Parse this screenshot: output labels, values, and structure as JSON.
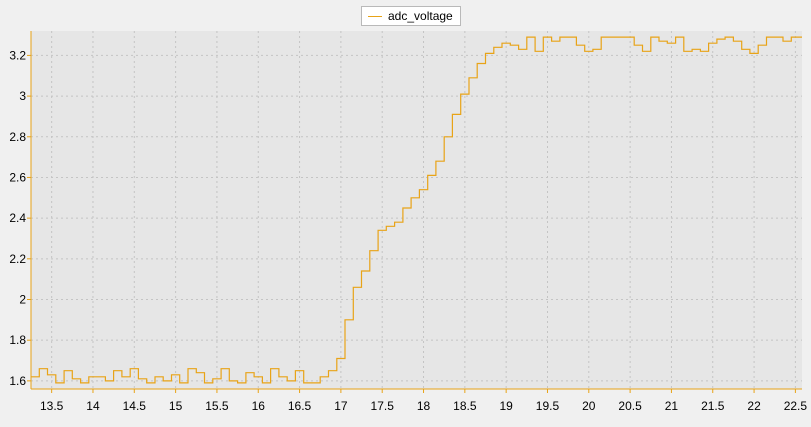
{
  "chart_data": {
    "type": "line",
    "step": true,
    "series": [
      {
        "name": "adc_voltage",
        "color": "#e8a317",
        "x": [
          13.25,
          13.35,
          13.45,
          13.55,
          13.65,
          13.75,
          13.85,
          13.95,
          14.05,
          14.15,
          14.25,
          14.35,
          14.45,
          14.55,
          14.65,
          14.75,
          14.85,
          14.95,
          15.05,
          15.15,
          15.25,
          15.35,
          15.45,
          15.55,
          15.65,
          15.75,
          15.85,
          15.95,
          16.05,
          16.15,
          16.25,
          16.35,
          16.45,
          16.55,
          16.65,
          16.75,
          16.85,
          16.95,
          17.05,
          17.15,
          17.25,
          17.35,
          17.45,
          17.55,
          17.65,
          17.75,
          17.85,
          17.95,
          18.05,
          18.15,
          18.25,
          18.35,
          18.45,
          18.55,
          18.65,
          18.75,
          18.85,
          18.95,
          19.05,
          19.15,
          19.25,
          19.35,
          19.45,
          19.55,
          19.65,
          19.75,
          19.85,
          19.95,
          20.05,
          20.15,
          20.25,
          20.35,
          20.45,
          20.55,
          20.65,
          20.75,
          20.85,
          20.95,
          21.05,
          21.15,
          21.25,
          21.35,
          21.45,
          21.55,
          21.65,
          21.75,
          21.85,
          21.95,
          22.05,
          22.15,
          22.25,
          22.35,
          22.45,
          22.55
        ],
        "y": [
          1.62,
          1.66,
          1.63,
          1.59,
          1.65,
          1.61,
          1.59,
          1.62,
          1.62,
          1.6,
          1.65,
          1.62,
          1.66,
          1.61,
          1.59,
          1.62,
          1.6,
          1.63,
          1.59,
          1.66,
          1.64,
          1.59,
          1.61,
          1.66,
          1.6,
          1.59,
          1.64,
          1.62,
          1.59,
          1.66,
          1.62,
          1.6,
          1.65,
          1.59,
          1.59,
          1.62,
          1.65,
          1.71,
          1.9,
          2.06,
          2.14,
          2.24,
          2.34,
          2.36,
          2.38,
          2.45,
          2.5,
          2.54,
          2.61,
          2.68,
          2.8,
          2.91,
          3.01,
          3.09,
          3.16,
          3.21,
          3.24,
          3.26,
          3.25,
          3.23,
          3.29,
          3.22,
          3.29,
          3.27,
          3.29,
          3.29,
          3.25,
          3.22,
          3.23,
          3.29,
          3.29,
          3.29,
          3.29,
          3.25,
          3.22,
          3.29,
          3.27,
          3.26,
          3.29,
          3.22,
          3.23,
          3.22,
          3.26,
          3.28,
          3.29,
          3.27,
          3.23,
          3.21,
          3.25,
          3.29,
          3.29,
          3.27,
          3.29,
          3.29
        ]
      }
    ],
    "xlim": [
      13.25,
      22.58
    ],
    "ylim": [
      1.56,
      3.32
    ],
    "xticks": [
      13.5,
      14,
      14.5,
      15,
      15.5,
      16,
      16.5,
      17,
      17.5,
      18,
      18.5,
      19,
      19.5,
      20,
      20.5,
      21,
      21.5,
      22,
      22.5
    ],
    "xtick_labels": [
      "13.5",
      "14",
      "14.5",
      "15",
      "15.5",
      "16",
      "16.5",
      "17",
      "17.5",
      "18",
      "18.5",
      "19",
      "19.5",
      "20",
      "20.5",
      "21",
      "21.5",
      "22",
      "22.5"
    ],
    "yticks": [
      1.6,
      1.8,
      2,
      2.2,
      2.4,
      2.6,
      2.8,
      3,
      3.2
    ],
    "ytick_labels": [
      "1.6",
      "1.8",
      "2",
      "2.2",
      "2.4",
      "2.6",
      "2.8",
      "3",
      "3.2"
    ],
    "grid": true,
    "legend": "top-center",
    "colors": {
      "plot_bg": "#e6e6e6",
      "page_bg": "#f0f0f0",
      "grid": "#c4c4c4",
      "axis": "#e8a317",
      "tick_text": "#000000"
    }
  },
  "legend": {
    "label": "adc_voltage"
  }
}
